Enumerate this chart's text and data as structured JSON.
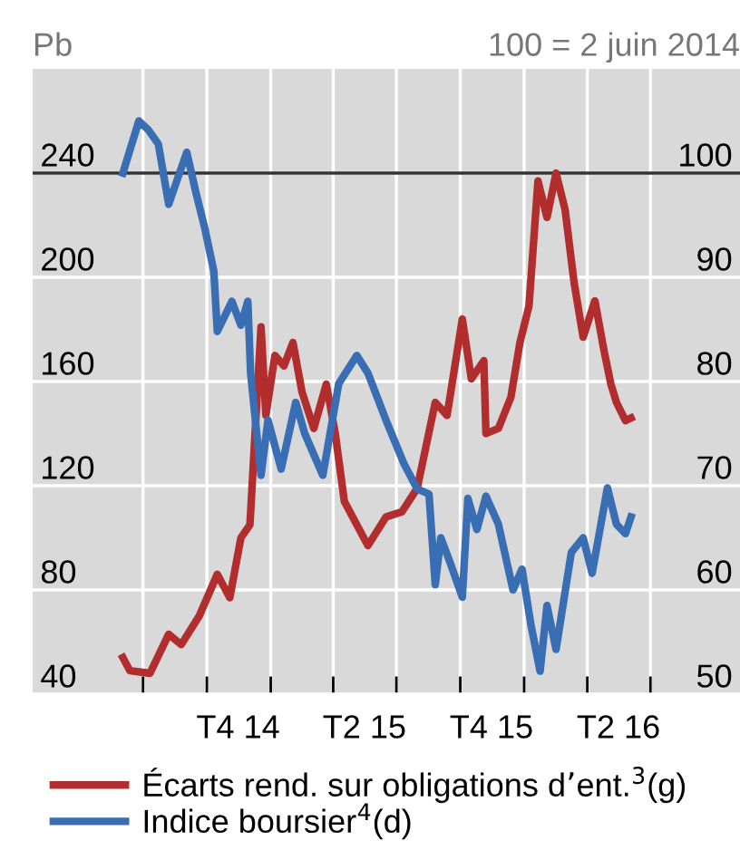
{
  "chart_data": {
    "type": "line",
    "ylabel": "Pb",
    "y2label": "100 = 2 juin 2014",
    "xlim": [
      "2014-01-23",
      "2016-11-07"
    ],
    "xticks": [
      {
        "value": "2014-07-01",
        "label": null
      },
      {
        "value": "2014-10-01",
        "label": null
      },
      {
        "value": "2015-01-01",
        "label": null
      },
      {
        "value": "2015-04-01",
        "label": null
      },
      {
        "value": "2015-07-01",
        "label": null
      },
      {
        "value": "2015-10-01",
        "label": null
      },
      {
        "value": "2016-01-01",
        "label": null
      },
      {
        "value": "2016-04-01",
        "label": null
      },
      {
        "value": "2016-07-01",
        "label": null
      },
      {
        "value": "2014-11-15",
        "label": "T4 14"
      },
      {
        "value": "2015-05-16",
        "label": "T2 15"
      },
      {
        "value": "2015-11-15",
        "label": "T4 15"
      },
      {
        "value": "2016-05-16",
        "label": "T2 16"
      }
    ],
    "ylim": [
      40,
      280
    ],
    "yticks": [
      40,
      80,
      120,
      160,
      200,
      240
    ],
    "y2lim": [
      50,
      110
    ],
    "y2ticks": [
      50,
      60,
      70,
      80,
      90,
      100
    ],
    "grid": true,
    "legend": "bottom",
    "line_style": "solid",
    "marker": "none",
    "ref_lines": [
      {
        "axis": "y",
        "value": 240,
        "color": "#333333"
      }
    ],
    "series": [
      {
        "name": "Écarts rend. sur obligations d’ent.$^{3}$(g)",
        "color": "#b22e2e",
        "x": [
          "2014-06-02",
          "2014-06-12",
          "2014-07-11",
          "2014-08-07",
          "2014-08-25",
          "2014-09-20",
          "2014-10-16",
          "2014-11-03",
          "2014-11-19",
          "2014-12-02",
          "2014-12-18",
          "2014-12-25",
          "2015-01-07",
          "2015-01-20",
          "2015-02-02",
          "2015-02-15",
          "2015-03-04",
          "2015-03-22",
          "2015-04-04",
          "2015-04-17",
          "2015-05-21",
          "2015-06-16",
          "2015-07-09",
          "2015-07-31",
          "2015-08-26",
          "2015-09-12",
          "2015-10-04",
          "2015-10-17",
          "2015-11-04",
          "2015-11-07",
          "2015-11-25",
          "2015-12-13",
          "2015-12-26",
          "2016-01-08",
          "2016-01-21",
          "2016-02-03",
          "2016-02-16",
          "2016-02-29",
          "2016-03-13",
          "2016-03-26",
          "2016-04-12",
          "2016-04-25",
          "2016-05-05",
          "2016-05-13",
          "2016-05-26",
          "2016-06-03"
        ],
        "values": [
          54,
          49,
          48,
          63,
          59,
          70,
          86,
          77,
          100,
          105,
          181,
          147,
          170,
          166,
          175,
          156,
          142,
          159,
          140,
          114,
          97,
          108,
          110,
          119,
          152,
          147,
          184,
          161,
          168,
          140,
          142,
          154,
          175,
          189,
          237,
          223,
          240,
          226,
          198,
          177,
          191,
          172,
          159,
          152,
          145,
          146
        ]
      },
      {
        "name": "Indice boursier$^{4}$(d)",
        "color": "#3a6eb4",
        "axis": "y2",
        "x": [
          "2014-06-02",
          "2014-06-25",
          "2014-07-08",
          "2014-07-23",
          "2014-08-07",
          "2014-09-02",
          "2014-09-15",
          "2014-09-28",
          "2014-10-11",
          "2014-10-16",
          "2014-11-06",
          "2014-11-19",
          "2014-11-29",
          "2014-12-03",
          "2014-12-18",
          "2014-12-28",
          "2015-01-16",
          "2015-02-06",
          "2015-02-19",
          "2015-03-17",
          "2015-04-09",
          "2015-05-05",
          "2015-05-21",
          "2015-06-16",
          "2015-07-12",
          "2015-07-31",
          "2015-08-17",
          "2015-08-26",
          "2015-09-03",
          "2015-09-16",
          "2015-10-04",
          "2015-10-12",
          "2015-10-25",
          "2015-11-07",
          "2015-11-25",
          "2015-12-16",
          "2015-12-29",
          "2016-01-11",
          "2016-01-24",
          "2016-02-03",
          "2016-02-16",
          "2016-03-09",
          "2016-03-26",
          "2016-04-08",
          "2016-04-30",
          "2016-05-13",
          "2016-05-26",
          "2016-06-03"
        ],
        "values": [
          100,
          105,
          104.2,
          102.8,
          97,
          102,
          98.2,
          94.7,
          90.6,
          84.8,
          87.7,
          85.4,
          87.7,
          80.8,
          71,
          76.3,
          71.6,
          78,
          75,
          71,
          79.8,
          82.5,
          80.8,
          76.3,
          72.1,
          69.7,
          69.2,
          60.5,
          65,
          62.7,
          59.3,
          68.8,
          65.8,
          69,
          66.3,
          60,
          62,
          56.6,
          52.2,
          58.5,
          54.3,
          63.6,
          65,
          61.6,
          69.8,
          66.3,
          65.4,
          67
        ]
      }
    ]
  }
}
